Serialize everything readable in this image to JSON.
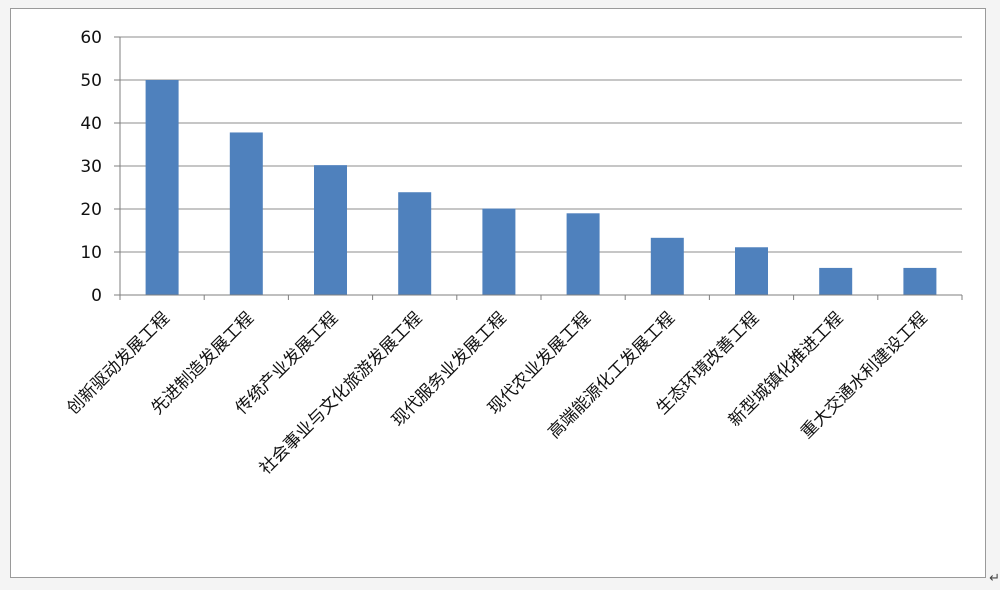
{
  "chart_data": {
    "type": "bar",
    "title": "",
    "xlabel": "",
    "ylabel": "",
    "categories": [
      "创新驱动发展工程",
      "先进制造发展工程",
      "传统产业发展工程",
      "社会事业与文化旅游发展工程",
      "现代服务业发展工程",
      "现代农业发展工程",
      "高端能源化工发展工程",
      "生态环境改善工程",
      "新型城镇化推进工程",
      "重大交通水利建设工程"
    ],
    "values": [
      50,
      37.8,
      30.2,
      23.9,
      20.1,
      19,
      13.3,
      11.1,
      6.3,
      6.3
    ],
    "ylim": [
      0,
      60
    ],
    "yticks": [
      "0",
      "10",
      "20",
      "30",
      "40",
      "50",
      "60"
    ],
    "grid": true,
    "legend": "none",
    "bar_color": "#4f81bd",
    "grid_color": "#8c8c8c"
  },
  "corner_mark": "↵"
}
